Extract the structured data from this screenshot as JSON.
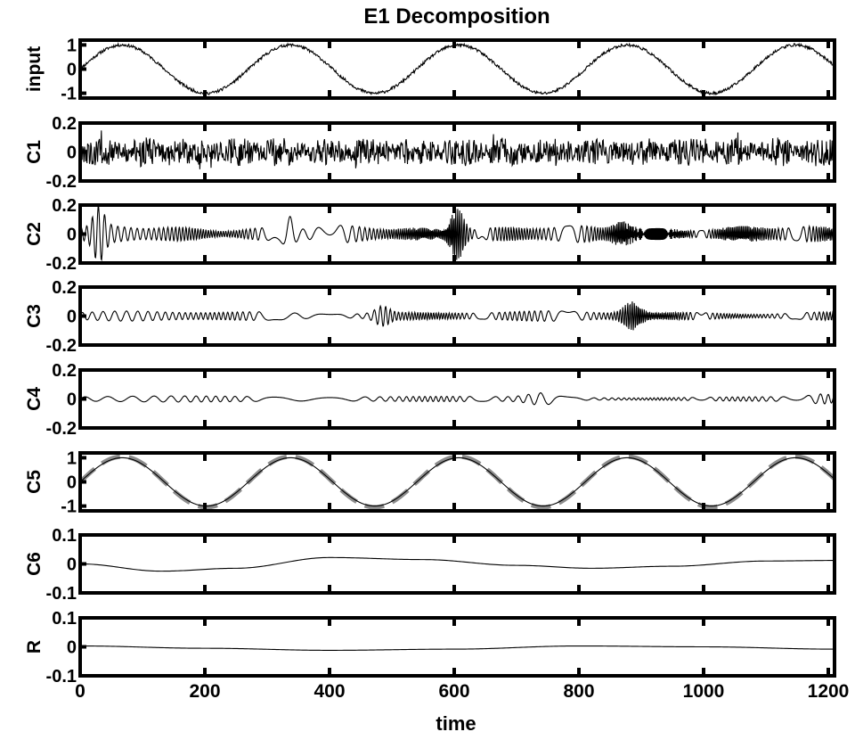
{
  "chart_data": {
    "type": "line",
    "title": "E1 Decomposition",
    "xlabel": "time",
    "xlim": [
      0,
      1210
    ],
    "xticks": [
      0,
      200,
      400,
      600,
      800,
      1000,
      1200
    ],
    "xtick_labels": [
      "0",
      "200",
      "400",
      "600",
      "800",
      "1000",
      "1200"
    ],
    "grid": false,
    "panels": [
      {
        "ylabel": "input",
        "ylim": [
          -1.2,
          1.2
        ],
        "yticks": [
          -1,
          0,
          1
        ],
        "ytick_labels": [
          "-1",
          "0",
          "1"
        ],
        "series": [
          {
            "kind": "sine_noise",
            "amplitude": 1.0,
            "period": 270,
            "phase_x0": 0,
            "noise": 0.06,
            "seed": 11
          }
        ]
      },
      {
        "ylabel": "C1",
        "ylim": [
          -0.2,
          0.2
        ],
        "yticks": [
          -0.2,
          0,
          0.2
        ],
        "ytick_labels": [
          "-0.2",
          "0",
          "0.2"
        ],
        "series": [
          {
            "kind": "noise",
            "amplitude": 0.1,
            "period": 3,
            "seed": 21
          }
        ]
      },
      {
        "ylabel": "C2",
        "ylim": [
          -0.2,
          0.2
        ],
        "yticks": [
          -0.2,
          0,
          0.2
        ],
        "ytick_labels": [
          "-0.2",
          "0",
          "0.2"
        ],
        "series": [
          {
            "kind": "imf",
            "amplitude": 0.05,
            "period": 9,
            "seed": 31,
            "bursts": [
              {
                "x": 30,
                "amp": 0.14,
                "w": 12
              },
              {
                "x": 335,
                "amp": 0.09,
                "w": 10
              },
              {
                "x": 605,
                "amp": 0.16,
                "w": 14
              },
              {
                "x": 870,
                "amp": 0.06,
                "w": 20
              }
            ]
          }
        ]
      },
      {
        "ylabel": "C3",
        "ylim": [
          -0.2,
          0.2
        ],
        "yticks": [
          -0.2,
          0,
          0.2
        ],
        "ytick_labels": [
          "-0.2",
          "0",
          "0.2"
        ],
        "series": [
          {
            "kind": "imf",
            "amplitude": 0.03,
            "period": 16,
            "seed": 41,
            "bursts": [
              {
                "x": 485,
                "amp": 0.05,
                "w": 15
              },
              {
                "x": 885,
                "amp": 0.08,
                "w": 18
              }
            ]
          }
        ]
      },
      {
        "ylabel": "C4",
        "ylim": [
          -0.2,
          0.2
        ],
        "yticks": [
          -0.2,
          0,
          0.2
        ],
        "ytick_labels": [
          "-0.2",
          "0",
          "0.2"
        ],
        "series": [
          {
            "kind": "imf",
            "amplitude": 0.018,
            "period": 34,
            "seed": 51,
            "bursts": [
              {
                "x": 740,
                "amp": 0.03,
                "w": 30
              },
              {
                "x": 1190,
                "amp": 0.02,
                "w": 25
              }
            ]
          }
        ]
      },
      {
        "ylabel": "C5",
        "ylim": [
          -1.2,
          1.2
        ],
        "yticks": [
          -1,
          0,
          1
        ],
        "ytick_labels": [
          "-1",
          "0",
          "1"
        ],
        "series": [
          {
            "kind": "sine",
            "amplitude": 1.05,
            "period": 270,
            "phase_x0": 0,
            "dashed": true,
            "color": "#8c8c8c"
          },
          {
            "kind": "sine",
            "amplitude": 1.0,
            "period": 270,
            "phase_x0": 0,
            "color": "#000000"
          }
        ]
      },
      {
        "ylabel": "C6",
        "ylim": [
          -0.1,
          0.1
        ],
        "yticks": [
          -0.1,
          0,
          0.1
        ],
        "ytick_labels": [
          "-0.1",
          "0",
          "0.1"
        ],
        "series": [
          {
            "kind": "points",
            "x": [
              0,
              130,
              250,
              400,
              550,
              700,
              820,
              950,
              1100,
              1210
            ],
            "y": [
              0.0,
              -0.025,
              -0.015,
              0.022,
              0.015,
              -0.005,
              -0.015,
              -0.008,
              0.01,
              0.012
            ]
          }
        ]
      },
      {
        "ylabel": "R",
        "ylim": [
          -0.1,
          0.1
        ],
        "yticks": [
          -0.1,
          0,
          0.1
        ],
        "ytick_labels": [
          "-0.1",
          "0",
          "0.1"
        ],
        "series": [
          {
            "kind": "points",
            "x": [
              0,
              200,
              400,
              600,
              800,
              1000,
              1210
            ],
            "y": [
              0.003,
              -0.005,
              -0.012,
              -0.008,
              0.003,
              0.0,
              -0.008
            ]
          }
        ]
      }
    ]
  }
}
